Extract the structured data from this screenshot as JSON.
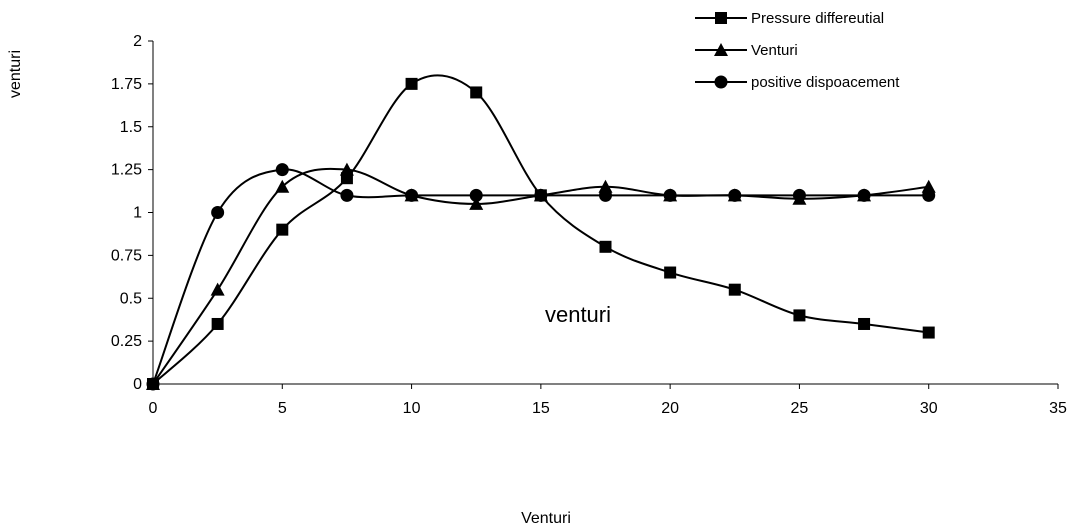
{
  "chart_data": {
    "type": "line",
    "title": "",
    "xlabel": "Venturi",
    "ylabel": "venturi",
    "annotation": "venturi",
    "xlim": [
      0,
      35
    ],
    "ylim": [
      0,
      2
    ],
    "xticks": [
      0,
      5,
      10,
      15,
      20,
      25,
      30,
      35
    ],
    "yticks": [
      0,
      0.25,
      0.5,
      0.75,
      1,
      1.25,
      1.5,
      1.75,
      2
    ],
    "ytick_labels": [
      "0",
      "0.25",
      "0.5",
      "0.75",
      "1",
      "1.25",
      "1.5",
      "1.75",
      "2"
    ],
    "xtick_labels": [
      "0",
      "5",
      "10",
      "15",
      "20",
      "25",
      "30",
      "35"
    ],
    "grid": false,
    "smooth": true,
    "legend_position": "top-right",
    "series": [
      {
        "name": "Pressure differeutial",
        "marker": "square",
        "x": [
          0,
          2.5,
          5,
          7.5,
          10,
          12.5,
          15,
          17.5,
          20,
          22.5,
          25,
          27.5,
          30
        ],
        "values": [
          0,
          0.35,
          0.9,
          1.2,
          1.75,
          1.7,
          1.1,
          0.8,
          0.65,
          0.55,
          0.4,
          0.35,
          0.3
        ]
      },
      {
        "name": "Venturi",
        "marker": "triangle",
        "x": [
          0,
          2.5,
          5,
          7.5,
          10,
          12.5,
          15,
          17.5,
          20,
          22.5,
          25,
          27.5,
          30
        ],
        "values": [
          0,
          0.55,
          1.15,
          1.25,
          1.1,
          1.05,
          1.1,
          1.15,
          1.1,
          1.1,
          1.08,
          1.1,
          1.15
        ]
      },
      {
        "name": "positive dispoacement",
        "marker": "circle",
        "x": [
          0,
          2.5,
          5,
          7.5,
          10,
          12.5,
          15,
          17.5,
          20,
          22.5,
          25,
          27.5,
          30
        ],
        "values": [
          0,
          1.0,
          1.25,
          1.1,
          1.1,
          1.1,
          1.1,
          1.1,
          1.1,
          1.1,
          1.1,
          1.1,
          1.1
        ]
      }
    ]
  }
}
